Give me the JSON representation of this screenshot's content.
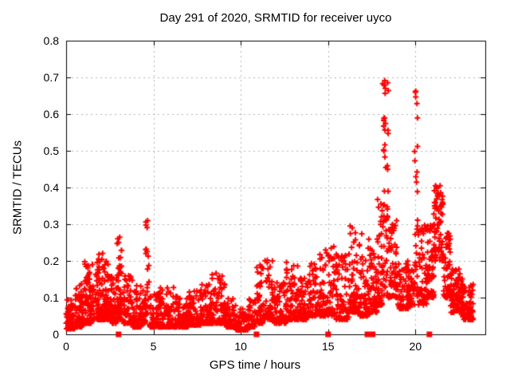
{
  "chart_data": {
    "type": "scatter",
    "title": "Day 291 of 2020, SRMTID for receiver uyco",
    "xlabel": "GPS time / hours",
    "ylabel": "SRMTID / TECUs",
    "xlim": [
      0,
      24
    ],
    "ylim": [
      0,
      0.8
    ],
    "xticks": {
      "values": [
        0,
        5,
        10,
        15,
        20
      ],
      "labels": [
        "0",
        "5",
        "10",
        "15",
        "20"
      ]
    },
    "yticks": {
      "values": [
        0,
        0.1,
        0.2,
        0.3,
        0.4,
        0.5,
        0.6,
        0.7,
        0.8
      ],
      "labels": [
        "0",
        "0.1",
        "0.2",
        "0.3",
        "0.4",
        "0.5",
        "0.6",
        "0.7",
        "0.8"
      ]
    },
    "grid": {
      "style": "dashed",
      "color": "#b0b0b0",
      "x_values": [
        5,
        10,
        15,
        20
      ],
      "y_values": [
        0.1,
        0.2,
        0.3,
        0.4,
        0.5,
        0.6,
        0.7
      ]
    },
    "legend": "none",
    "marker_color": "#ff0000",
    "series": [
      {
        "name": "srmtid-values",
        "marker": "plus",
        "color": "#ff0000",
        "points_estimated_from_envelope": true,
        "envelope_segment_format": "[x_start_hr, x_end_hr, y_min, y_max, n_points, skew_exponent]",
        "seed": 42,
        "envelope_segments": [
          [
            0.0,
            0.5,
            0.015,
            0.095,
            80,
            2.2
          ],
          [
            0.5,
            1.0,
            0.02,
            0.14,
            70,
            2.4
          ],
          [
            1.0,
            1.5,
            0.03,
            0.2,
            75,
            2.4
          ],
          [
            1.5,
            2.1,
            0.04,
            0.23,
            85,
            2.5
          ],
          [
            2.1,
            2.6,
            0.04,
            0.2,
            75,
            2.5
          ],
          [
            2.6,
            2.9,
            0.03,
            0.17,
            45,
            2.4
          ],
          [
            2.9,
            3.2,
            0.04,
            0.27,
            50,
            2.0
          ],
          [
            3.2,
            3.8,
            0.03,
            0.16,
            65,
            2.5
          ],
          [
            3.8,
            4.3,
            0.02,
            0.14,
            60,
            2.5
          ],
          [
            4.3,
            4.55,
            0.03,
            0.12,
            30,
            2.3
          ],
          [
            4.55,
            4.75,
            0.05,
            0.31,
            25,
            1.4
          ],
          [
            4.75,
            5.3,
            0.02,
            0.12,
            60,
            2.4
          ],
          [
            5.3,
            6.2,
            0.02,
            0.13,
            90,
            2.6
          ],
          [
            6.2,
            7.0,
            0.02,
            0.11,
            85,
            2.6
          ],
          [
            7.0,
            7.7,
            0.025,
            0.12,
            75,
            2.5
          ],
          [
            7.7,
            8.3,
            0.03,
            0.14,
            70,
            2.5
          ],
          [
            8.3,
            9.1,
            0.03,
            0.17,
            85,
            2.5
          ],
          [
            9.1,
            9.7,
            0.02,
            0.1,
            65,
            2.5
          ],
          [
            9.7,
            10.4,
            0.012,
            0.07,
            65,
            2.3
          ],
          [
            10.4,
            10.8,
            0.02,
            0.1,
            40,
            2.4
          ],
          [
            10.8,
            11.3,
            0.03,
            0.19,
            55,
            2.4
          ],
          [
            11.3,
            11.9,
            0.04,
            0.22,
            60,
            2.4
          ],
          [
            11.9,
            12.6,
            0.03,
            0.15,
            70,
            2.5
          ],
          [
            12.6,
            13.3,
            0.04,
            0.21,
            70,
            2.4
          ],
          [
            13.3,
            13.9,
            0.04,
            0.16,
            60,
            2.5
          ],
          [
            13.9,
            14.6,
            0.05,
            0.22,
            70,
            2.4
          ],
          [
            14.6,
            15.4,
            0.05,
            0.26,
            80,
            2.4
          ],
          [
            15.4,
            16.2,
            0.04,
            0.22,
            75,
            2.4
          ],
          [
            16.2,
            16.8,
            0.06,
            0.3,
            70,
            2.3
          ],
          [
            16.8,
            17.4,
            0.05,
            0.28,
            65,
            2.3
          ],
          [
            17.4,
            17.8,
            0.06,
            0.24,
            50,
            2.3
          ],
          [
            17.8,
            18.1,
            0.08,
            0.38,
            45,
            1.9
          ],
          [
            18.1,
            18.45,
            0.1,
            0.7,
            60,
            1.3
          ],
          [
            18.45,
            19.0,
            0.1,
            0.35,
            65,
            1.9
          ],
          [
            19.0,
            19.6,
            0.07,
            0.2,
            60,
            2.2
          ],
          [
            19.6,
            19.95,
            0.08,
            0.18,
            45,
            2.0
          ],
          [
            19.95,
            20.15,
            0.09,
            0.74,
            30,
            1.2
          ],
          [
            20.15,
            20.7,
            0.08,
            0.3,
            60,
            2.0
          ],
          [
            20.7,
            21.05,
            0.1,
            0.3,
            50,
            2.0
          ],
          [
            21.05,
            21.6,
            0.2,
            0.41,
            70,
            1.2
          ],
          [
            21.6,
            22.0,
            0.1,
            0.3,
            55,
            2.0
          ],
          [
            22.0,
            22.7,
            0.06,
            0.18,
            90,
            1.6
          ],
          [
            22.7,
            23.35,
            0.04,
            0.14,
            70,
            1.8
          ]
        ]
      },
      {
        "name": "baseline-event-markers",
        "marker": "filled-square",
        "color": "#ff0000",
        "points": [
          [
            3.0,
            0
          ],
          [
            10.9,
            0
          ],
          [
            15.0,
            0
          ],
          [
            17.25,
            0
          ],
          [
            17.55,
            0
          ],
          [
            20.8,
            0
          ]
        ]
      }
    ]
  }
}
